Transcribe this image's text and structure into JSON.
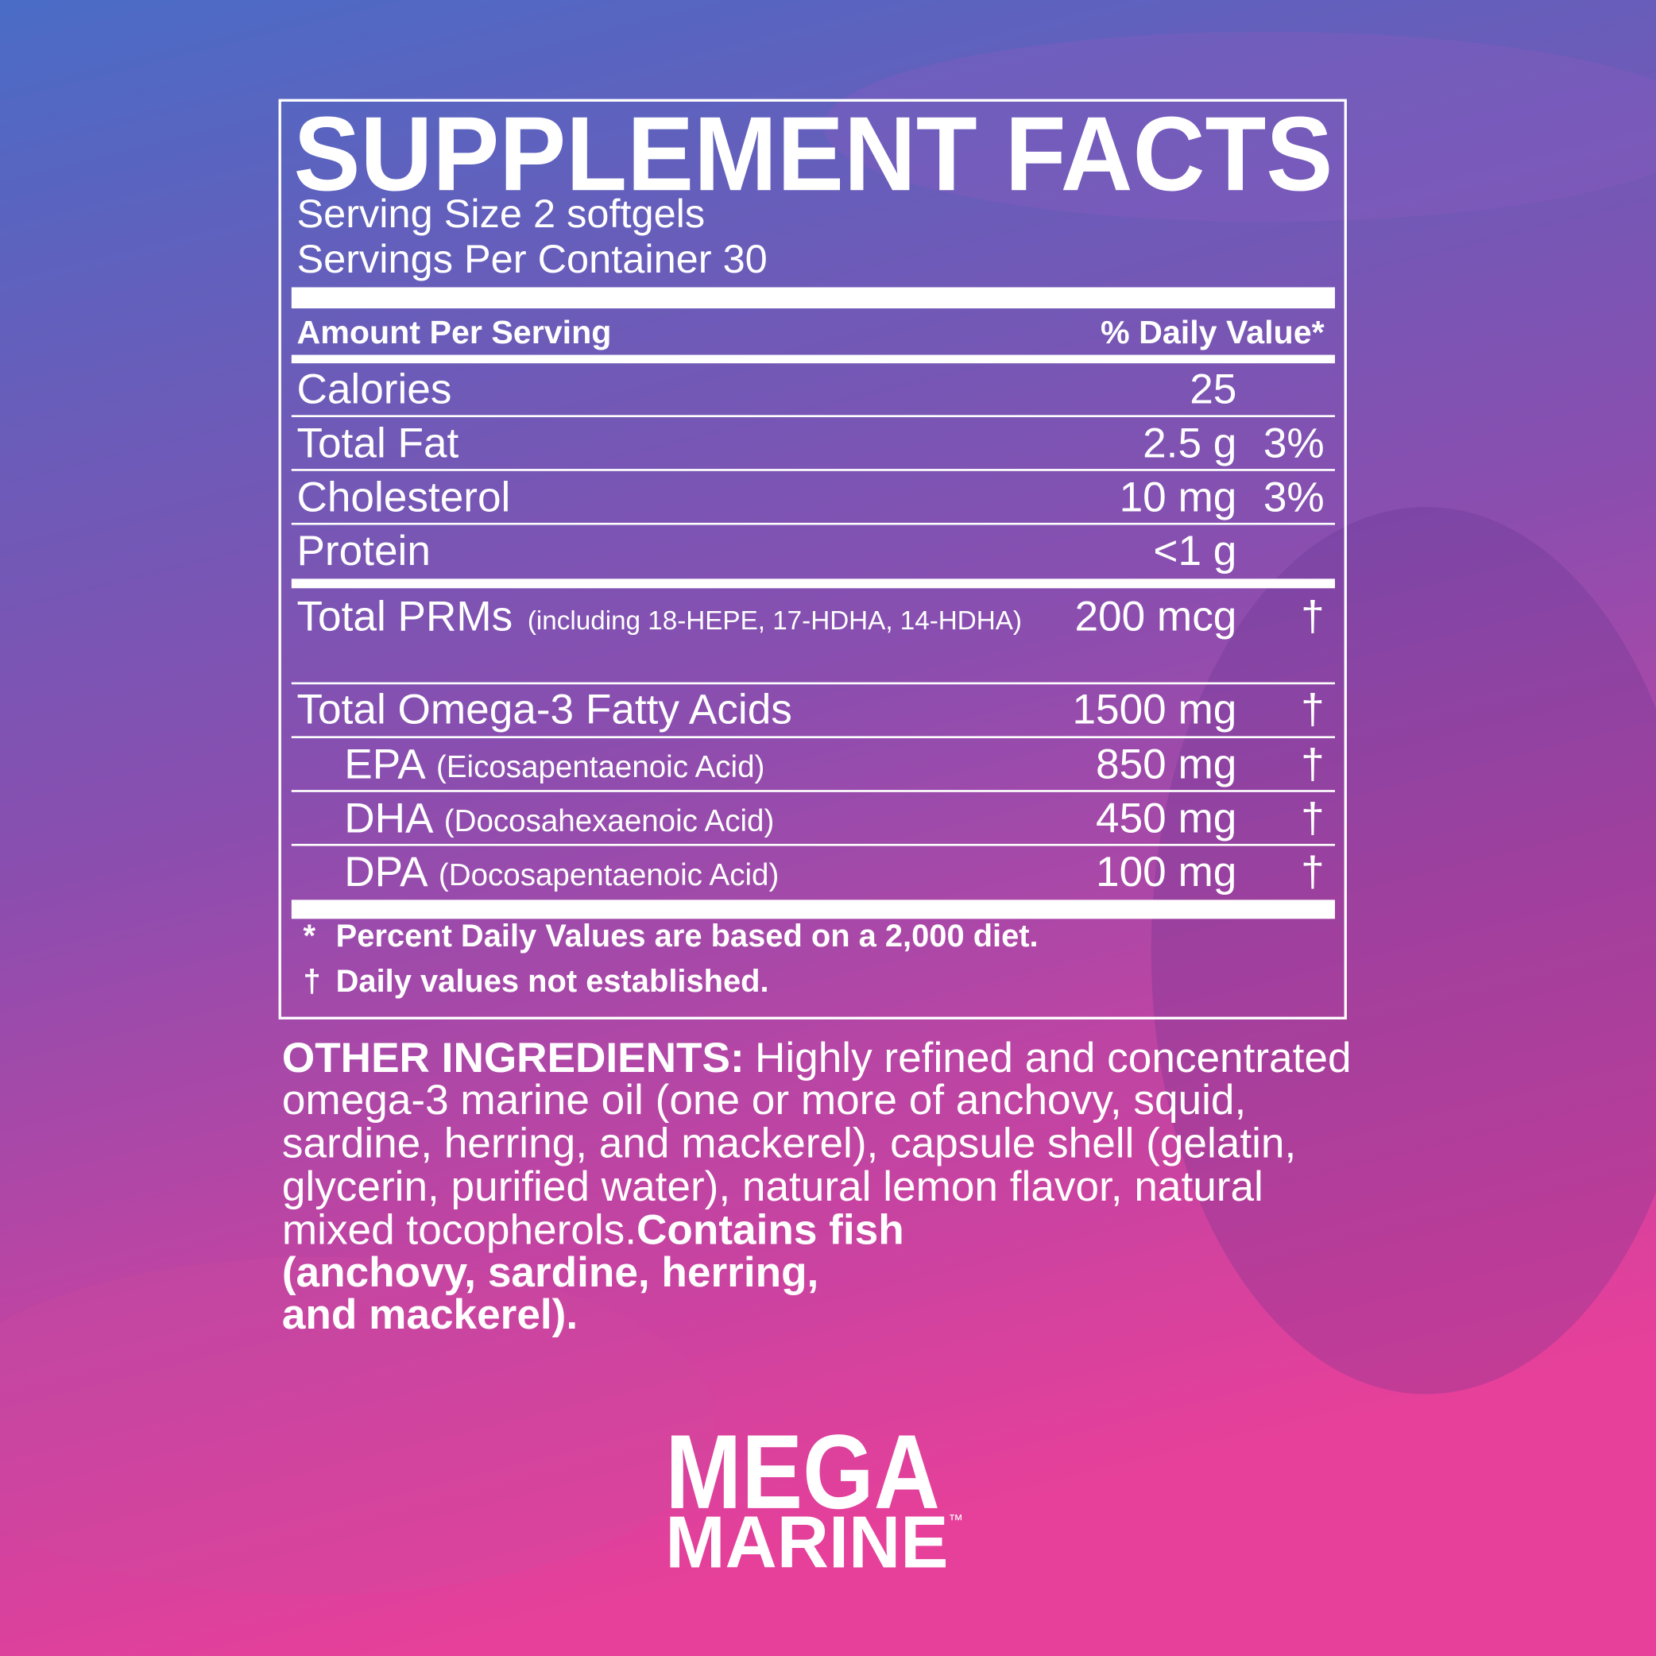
{
  "header": {
    "title": "SUPPLEMENT FACTS",
    "serving_size": "Serving Size 2 softgels",
    "servings_per_container": "Servings Per Container 30"
  },
  "table": {
    "header": [
      "Amount Per Serving",
      "% Daily Value*"
    ],
    "rows": [
      {
        "name": "Calories",
        "amount": "25"
      },
      {
        "name": "Total Fat",
        "amount": "2.5 g",
        "dv": "3%"
      },
      {
        "name": "Cholesterol",
        "amount": "10 mg",
        "dv": "3%"
      },
      {
        "name": "Protein",
        "amount": "<1 g"
      },
      {
        "name": "Total PRMs",
        "note": "(including 18-HEPE, 17-HDHA, 14-HDHA)",
        "amount": "200 mcg",
        "dv": "†"
      },
      {
        "name": "Total Omega-3 Fatty Acids",
        "amount": "1500 mg",
        "dv": "†"
      },
      {
        "name": "EPA",
        "note": "(Eicosapentaenoic Acid)",
        "amount": "850 mg",
        "dv": "†"
      },
      {
        "name": "DHA",
        "note": "(Docosahexaenoic Acid)",
        "amount": "450 mg",
        "dv": "†"
      },
      {
        "name": "DPA",
        "note": "(Docosapentaenoic Acid)",
        "amount": "100 mg",
        "dv": "†"
      }
    ]
  },
  "footnotes": [
    {
      "symbol": "*",
      "text": "Percent Daily Values are based on a 2,000 diet."
    },
    {
      "symbol": "†",
      "text": "Daily values not established."
    }
  ],
  "other_ingredients": {
    "label": "OTHER INGREDIENTS:",
    "lines": [
      "Highly refined and concentrated",
      "omega-3 marine oil (one or more of anchovy, squid,",
      "sardine, herring, and mackerel), capsule shell (gelatin,",
      "glycerin, purified water), natural lemon flavor, natural",
      "mixed tocopherols."
    ],
    "allergen": [
      "Contains fish",
      "(anchovy, sardine, herring,",
      "and mackerel)."
    ]
  },
  "brand": {
    "line1": "MEGA",
    "line2": "MARINE",
    "mark": "™"
  }
}
